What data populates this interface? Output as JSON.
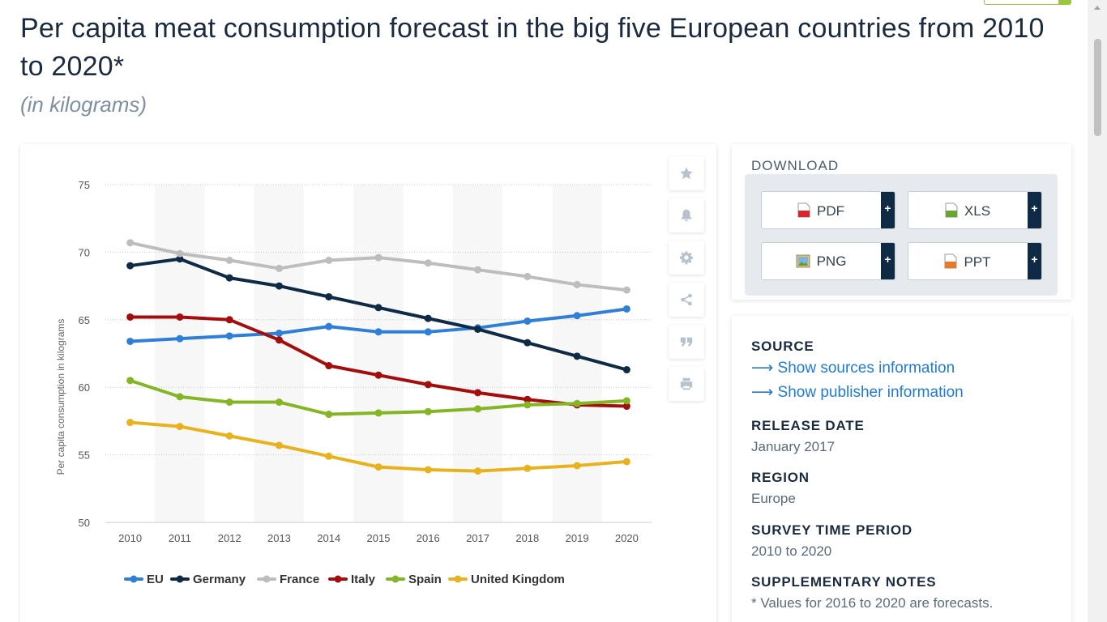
{
  "header": {
    "title": "Per capita meat consumption forecast in the big five European countries from 2010 to 2020*",
    "subtitle": "(in kilograms)"
  },
  "chart_data": {
    "type": "line",
    "title": "Per capita meat consumption forecast in the big five European countries from 2010 to 2020*",
    "subtitle": "(in kilograms)",
    "xlabel": "",
    "ylabel": "Per capita consumption in kilograms",
    "ylim": [
      50,
      75
    ],
    "yticks": [
      50,
      55,
      60,
      65,
      70,
      75
    ],
    "categories": [
      "2010",
      "2011",
      "2012",
      "2013",
      "2014",
      "2015",
      "2016",
      "2017",
      "2018",
      "2019",
      "2020"
    ],
    "legend_position": "bottom",
    "series": [
      {
        "name": "EU",
        "color": "#2f7ed8",
        "values": [
          63.4,
          63.6,
          63.8,
          64.0,
          64.5,
          64.1,
          64.1,
          64.4,
          64.9,
          65.3,
          65.8
        ]
      },
      {
        "name": "Germany",
        "color": "#0f2a44",
        "values": [
          69.0,
          69.5,
          68.1,
          67.5,
          66.7,
          65.9,
          65.1,
          64.3,
          63.3,
          62.3,
          61.3
        ]
      },
      {
        "name": "France",
        "color": "#bdbdbd",
        "values": [
          70.7,
          69.9,
          69.4,
          68.8,
          69.4,
          69.6,
          69.2,
          68.7,
          68.2,
          67.6,
          67.2
        ]
      },
      {
        "name": "Italy",
        "color": "#a50d0d",
        "values": [
          65.2,
          65.2,
          65.0,
          63.5,
          61.6,
          60.9,
          60.2,
          59.6,
          59.1,
          58.7,
          58.6
        ]
      },
      {
        "name": "Spain",
        "color": "#84b524",
        "values": [
          60.5,
          59.3,
          58.9,
          58.9,
          58.0,
          58.1,
          58.2,
          58.4,
          58.7,
          58.8,
          59.0
        ]
      },
      {
        "name": "United Kingdom",
        "color": "#e8b21e",
        "values": [
          57.4,
          57.1,
          56.4,
          55.7,
          54.9,
          54.1,
          53.9,
          53.8,
          54.0,
          54.2,
          54.5
        ]
      }
    ]
  },
  "tools": {
    "icons": [
      "star-icon",
      "bell-icon",
      "gear-icon",
      "share-icon",
      "quote-icon",
      "print-icon"
    ]
  },
  "download": {
    "title": "DOWNLOAD",
    "buttons": [
      {
        "label": "PDF",
        "plus": "+",
        "icon": "pdf-file-icon"
      },
      {
        "label": "XLS",
        "plus": "+",
        "icon": "xls-file-icon"
      },
      {
        "label": "PNG",
        "plus": "+",
        "icon": "png-file-icon"
      },
      {
        "label": "PPT",
        "plus": "+",
        "icon": "ppt-file-icon"
      }
    ]
  },
  "info": {
    "source_heading": "SOURCE",
    "source_link": "Show sources information",
    "publisher_link": "Show publisher information",
    "link_arrow": "⟶",
    "release_heading": "RELEASE DATE",
    "release_value": "January 2017",
    "region_heading": "REGION",
    "region_value": "Europe",
    "period_heading": "SURVEY TIME PERIOD",
    "period_value": "2010 to 2020",
    "notes_heading": "SUPPLEMENTARY NOTES",
    "notes_value": "* Values for 2016 to 2020 are forecasts."
  }
}
